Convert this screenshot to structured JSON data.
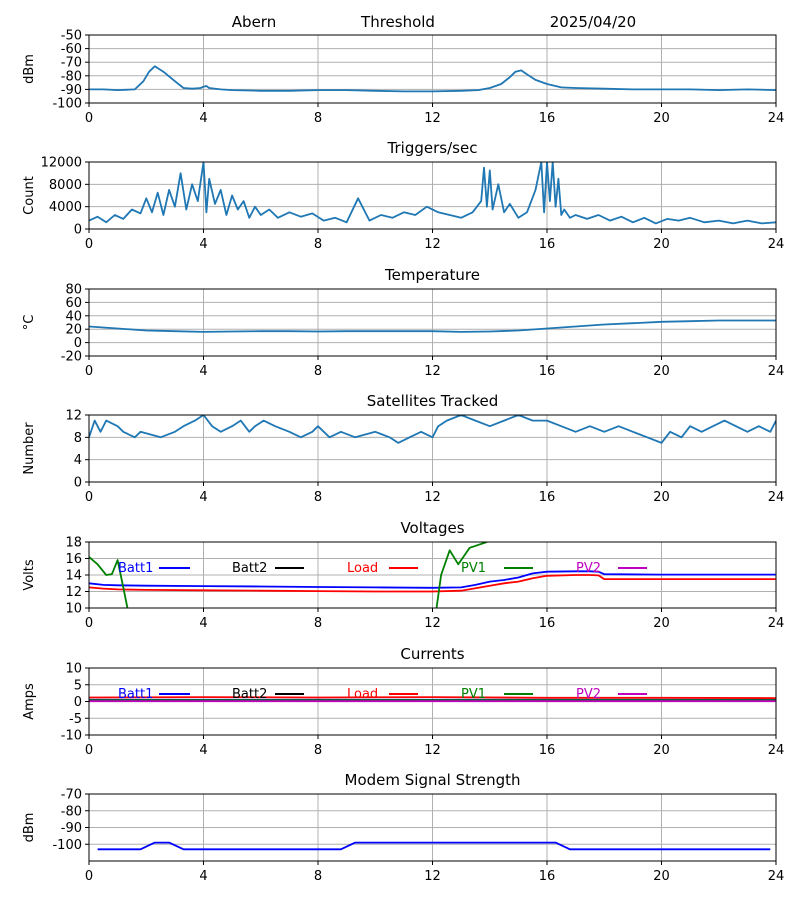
{
  "header": {
    "station": "Abern",
    "kind": "Threshold",
    "date": "2025/04/20"
  },
  "colors": {
    "default_series": "#1f77b4",
    "grid": "#b0b0b0",
    "Batt1": "#0000ff",
    "Batt2": "#000000",
    "Load": "#ff0000",
    "PV1": "#008000",
    "PV2": "#bf00bf"
  },
  "chart_data": [
    {
      "id": "threshold",
      "type": "line",
      "title": "",
      "ylabel": "dBm",
      "xlim": [
        0,
        24
      ],
      "ylim": [
        -100,
        -50
      ],
      "xticks": [
        0,
        4,
        8,
        12,
        16,
        20,
        24
      ],
      "yticks": [
        -100,
        -90,
        -80,
        -70,
        -60,
        -50
      ],
      "grid": true,
      "series": [
        {
          "color": "default_series",
          "x": [
            0,
            0.5,
            1,
            1.6,
            1.9,
            2.1,
            2.3,
            2.6,
            3.0,
            3.3,
            3.6,
            3.9,
            4.0,
            4.1,
            4.2,
            4.6,
            5,
            6,
            7,
            8,
            9,
            10,
            11,
            12,
            13,
            13.6,
            14,
            14.4,
            14.7,
            14.9,
            15.1,
            15.3,
            15.6,
            16,
            16.5,
            17,
            18,
            19,
            20,
            21,
            22,
            23,
            24
          ],
          "y": [
            -90,
            -90,
            -90.5,
            -90,
            -84,
            -77,
            -73,
            -77,
            -84,
            -89,
            -89.5,
            -89,
            -88,
            -87.5,
            -89,
            -90,
            -90.5,
            -91,
            -91,
            -90.5,
            -90.5,
            -91,
            -91.5,
            -91.5,
            -91,
            -90.5,
            -89,
            -86,
            -81,
            -77,
            -76,
            -79,
            -83,
            -86,
            -88.5,
            -89,
            -89.5,
            -90,
            -90,
            -90,
            -90.5,
            -90,
            -90.5
          ]
        }
      ]
    },
    {
      "id": "triggers",
      "type": "line",
      "title": "Triggers/sec",
      "ylabel": "Count",
      "xlim": [
        0,
        24
      ],
      "ylim": [
        0,
        12000
      ],
      "xticks": [
        0,
        4,
        8,
        12,
        16,
        20,
        24
      ],
      "yticks": [
        0,
        4000,
        8000,
        12000
      ],
      "grid": true,
      "series": [
        {
          "color": "default_series",
          "x": [
            0,
            0.3,
            0.6,
            0.9,
            1.2,
            1.5,
            1.8,
            2.0,
            2.2,
            2.4,
            2.6,
            2.8,
            3.0,
            3.2,
            3.4,
            3.6,
            3.8,
            4.0,
            4.1,
            4.2,
            4.4,
            4.6,
            4.8,
            5.0,
            5.2,
            5.4,
            5.6,
            5.8,
            6.0,
            6.3,
            6.6,
            7.0,
            7.4,
            7.8,
            8.2,
            8.6,
            9.0,
            9.4,
            9.8,
            10.2,
            10.6,
            11.0,
            11.4,
            11.8,
            12.2,
            12.6,
            13.0,
            13.4,
            13.7,
            13.8,
            13.9,
            14.0,
            14.1,
            14.3,
            14.5,
            14.7,
            15.0,
            15.3,
            15.6,
            15.8,
            15.9,
            16.0,
            16.1,
            16.2,
            16.3,
            16.4,
            16.5,
            16.6,
            16.8,
            17.0,
            17.4,
            17.8,
            18.2,
            18.6,
            19.0,
            19.4,
            19.8,
            20.2,
            20.6,
            21.0,
            21.5,
            22.0,
            22.5,
            23.0,
            23.5,
            24.0
          ],
          "y": [
            1500,
            2200,
            1200,
            2500,
            1800,
            3500,
            2800,
            5500,
            3000,
            6500,
            2500,
            7000,
            4000,
            10000,
            3500,
            8000,
            5000,
            12000,
            3000,
            9000,
            4500,
            7000,
            2500,
            6000,
            3500,
            5000,
            2000,
            4000,
            2500,
            3500,
            2000,
            3000,
            2200,
            2800,
            1500,
            2000,
            1200,
            5500,
            1500,
            2500,
            2000,
            3000,
            2500,
            4000,
            3000,
            2500,
            2000,
            3000,
            5000,
            11000,
            4000,
            10500,
            3500,
            8000,
            3000,
            4500,
            2000,
            3000,
            7000,
            12000,
            3000,
            12000,
            5000,
            12000,
            4000,
            9000,
            2500,
            3500,
            2000,
            2500,
            1800,
            2500,
            1500,
            2200,
            1200,
            2000,
            1000,
            1800,
            1500,
            2000,
            1200,
            1500,
            1000,
            1500,
            1000,
            1200
          ]
        }
      ]
    },
    {
      "id": "temperature",
      "type": "line",
      "title": "Temperature",
      "ylabel": "°C",
      "xlim": [
        0,
        24
      ],
      "ylim": [
        -20,
        80
      ],
      "xticks": [
        0,
        4,
        8,
        12,
        16,
        20,
        24
      ],
      "yticks": [
        -20,
        0,
        20,
        40,
        60,
        80
      ],
      "grid": true,
      "series": [
        {
          "color": "default_series",
          "x": [
            0,
            1,
            2,
            3,
            4,
            5,
            6,
            7,
            8,
            9,
            10,
            11,
            12,
            13,
            14,
            15,
            16,
            17,
            18,
            19,
            20,
            21,
            22,
            23,
            24
          ],
          "y": [
            24,
            21,
            18,
            17,
            16,
            16.5,
            17,
            17,
            16.5,
            17,
            17,
            17,
            17,
            16,
            16.5,
            18,
            21,
            24,
            27,
            29,
            31,
            32,
            33,
            33,
            33
          ]
        }
      ]
    },
    {
      "id": "satellites",
      "type": "line",
      "title": "Satellites Tracked",
      "ylabel": "Number",
      "xlim": [
        0,
        24
      ],
      "ylim": [
        0,
        12
      ],
      "xticks": [
        0,
        4,
        8,
        12,
        16,
        20,
        24
      ],
      "yticks": [
        0,
        4,
        8,
        12
      ],
      "grid": true,
      "series": [
        {
          "color": "default_series",
          "x": [
            0,
            0.2,
            0.4,
            0.6,
            1.0,
            1.2,
            1.6,
            1.8,
            2.5,
            3.0,
            3.3,
            3.7,
            4.0,
            4.3,
            4.6,
            5.0,
            5.3,
            5.6,
            5.8,
            6.1,
            6.5,
            7.0,
            7.4,
            7.8,
            8.0,
            8.4,
            8.8,
            9.3,
            10.0,
            10.5,
            10.8,
            11.2,
            11.6,
            12.0,
            12.2,
            12.5,
            13.0,
            13.5,
            14.0,
            14.5,
            15.0,
            15.5,
            16.0,
            16.5,
            17.0,
            17.5,
            18.0,
            18.5,
            19.0,
            19.5,
            20.0,
            20.3,
            20.7,
            21.0,
            21.4,
            21.8,
            22.2,
            22.6,
            23.0,
            23.4,
            23.8,
            24.0
          ],
          "y": [
            8,
            11,
            9,
            11,
            10,
            9,
            8,
            9,
            8,
            9,
            10,
            11,
            12,
            10,
            9,
            10,
            11,
            9,
            10,
            11,
            10,
            9,
            8,
            9,
            10,
            8,
            9,
            8,
            9,
            8,
            7,
            8,
            9,
            8,
            10,
            11,
            12,
            11,
            10,
            11,
            12,
            11,
            11,
            10,
            9,
            10,
            9,
            10,
            9,
            8,
            7,
            9,
            8,
            10,
            9,
            10,
            11,
            10,
            9,
            10,
            9,
            11
          ]
        }
      ]
    },
    {
      "id": "voltages",
      "type": "line",
      "title": "Voltages",
      "ylabel": "Volts",
      "xlim": [
        0,
        24
      ],
      "ylim": [
        10,
        18
      ],
      "xticks": [
        0,
        4,
        8,
        12,
        16,
        20,
        24
      ],
      "yticks": [
        10,
        12,
        14,
        16,
        18
      ],
      "grid": true,
      "legend": "top",
      "series": [
        {
          "name": "Batt1",
          "color": "Batt1",
          "x": [
            0,
            0.5,
            1,
            2,
            4,
            6,
            8,
            10,
            12,
            13,
            13.5,
            14,
            14.5,
            15,
            15.5,
            16,
            17,
            17.5,
            17.8,
            18,
            20,
            22,
            24
          ],
          "y": [
            13,
            12.8,
            12.75,
            12.7,
            12.65,
            12.6,
            12.55,
            12.5,
            12.45,
            12.5,
            12.8,
            13.2,
            13.4,
            13.7,
            14.2,
            14.4,
            14.45,
            14.45,
            14.4,
            14.1,
            14.05,
            14.05,
            14.05
          ]
        },
        {
          "name": "Batt2",
          "color": "Batt2",
          "x": [],
          "y": []
        },
        {
          "name": "Load",
          "color": "Load",
          "x": [
            0,
            0.5,
            1,
            2,
            4,
            6,
            8,
            10,
            12,
            13,
            13.5,
            14,
            14.5,
            15,
            15.5,
            16,
            17,
            17.5,
            17.8,
            18,
            20,
            22,
            24
          ],
          "y": [
            12.5,
            12.35,
            12.25,
            12.2,
            12.15,
            12.1,
            12.05,
            12,
            12,
            12.1,
            12.4,
            12.7,
            13,
            13.2,
            13.6,
            13.9,
            14,
            14,
            13.95,
            13.5,
            13.5,
            13.5,
            13.5
          ]
        },
        {
          "name": "PV1",
          "color": "PV1",
          "x": [
            0,
            0.3,
            0.6,
            0.8,
            1.0,
            1.2,
            1.4,
            12.1,
            12.3,
            12.6,
            12.9,
            13.3,
            13.9
          ],
          "y": [
            16.2,
            15.3,
            14,
            14.1,
            15.8,
            12.5,
            9,
            9,
            14,
            17,
            15.3,
            17.3,
            18
          ]
        },
        {
          "name": "PV2",
          "color": "PV2",
          "x": [],
          "y": []
        }
      ]
    },
    {
      "id": "currents",
      "type": "line",
      "title": "Currents",
      "ylabel": "Amps",
      "xlim": [
        0,
        24
      ],
      "ylim": [
        -10,
        10
      ],
      "xticks": [
        0,
        4,
        8,
        12,
        16,
        20,
        24
      ],
      "yticks": [
        -10,
        -5,
        0,
        5,
        10
      ],
      "grid": true,
      "legend": "top",
      "series": [
        {
          "name": "Batt1",
          "color": "Batt1",
          "x": [
            0,
            24
          ],
          "y": [
            0.5,
            0.5
          ]
        },
        {
          "name": "Batt2",
          "color": "Batt2",
          "x": [],
          "y": []
        },
        {
          "name": "Load",
          "color": "Load",
          "x": [
            0,
            4,
            8,
            12,
            16,
            20,
            24
          ],
          "y": [
            1.2,
            1.3,
            1.2,
            1.3,
            1.1,
            1.1,
            1.0
          ]
        },
        {
          "name": "PV1",
          "color": "PV1",
          "x": [
            0,
            24
          ],
          "y": [
            0.4,
            0.4
          ]
        },
        {
          "name": "PV2",
          "color": "PV2",
          "x": [
            0,
            24
          ],
          "y": [
            0.1,
            0.1
          ]
        }
      ]
    },
    {
      "id": "modem",
      "type": "line",
      "title": "Modem Signal Strength",
      "ylabel": "dBm",
      "xlim": [
        0,
        24
      ],
      "ylim": [
        -110,
        -70
      ],
      "xticks": [
        0,
        4,
        8,
        12,
        16,
        20,
        24
      ],
      "yticks": [
        -100,
        -90,
        -80,
        -70
      ],
      "grid": true,
      "series": [
        {
          "color": "Batt1",
          "x": [
            0.3,
            1.8,
            2.3,
            2.8,
            3.3,
            8.8,
            9.3,
            16.3,
            16.8,
            23.8
          ],
          "y": [
            -103,
            -103,
            -99,
            -99,
            -103,
            -103,
            -99,
            -99,
            -103,
            -103
          ]
        }
      ]
    }
  ]
}
